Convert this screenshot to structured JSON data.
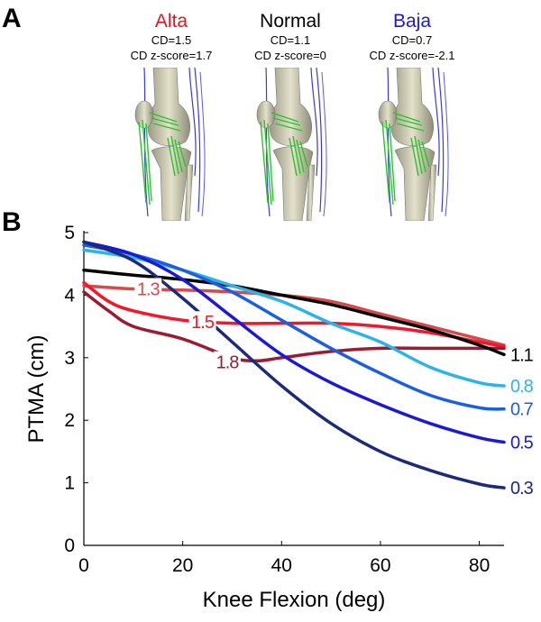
{
  "panel_a": {
    "letter": "A",
    "conditions": [
      {
        "name": "Alta",
        "color": "#e8141d",
        "cd": "CD=1.5",
        "z": "CD z-score=1.7"
      },
      {
        "name": "Normal",
        "color": "#000000",
        "cd": "CD=1.1",
        "z": "CD z-score=0"
      },
      {
        "name": "Baja",
        "color": "#1a1ad6",
        "cd": "CD=0.7",
        "z": "CD z-score=-2.1"
      }
    ]
  },
  "panel_b": {
    "letter": "B"
  },
  "chart_data": {
    "type": "line",
    "title": "",
    "xlabel": "Knee Flexion (deg)",
    "ylabel": "PTMA (cm)",
    "xlim": [
      0,
      85
    ],
    "ylim": [
      0,
      5
    ],
    "xticks": [
      0,
      20,
      40,
      60,
      80
    ],
    "yticks": [
      0,
      1,
      2,
      3,
      4,
      5
    ],
    "grid": false,
    "series": [
      {
        "name": "1.3",
        "color": "#d64a4a",
        "label_at": [
          13,
          4.1
        ],
        "x": [
          0,
          10,
          20,
          30,
          40,
          50,
          60,
          70,
          80,
          85
        ],
        "y": [
          4.15,
          4.1,
          4.08,
          4.05,
          4.0,
          3.9,
          3.7,
          3.5,
          3.3,
          3.2
        ]
      },
      {
        "name": "1.5",
        "color": "#f2182a",
        "label_at": [
          24,
          3.57
        ],
        "x": [
          0,
          5,
          10,
          20,
          30,
          40,
          50,
          60,
          70,
          80,
          85
        ],
        "y": [
          4.2,
          3.9,
          3.75,
          3.6,
          3.55,
          3.55,
          3.55,
          3.5,
          3.4,
          3.25,
          3.18
        ]
      },
      {
        "name": "1.8",
        "color": "#9b1b30",
        "label_at": [
          29,
          2.93
        ],
        "x": [
          0,
          5,
          10,
          20,
          30,
          35,
          40,
          50,
          60,
          70,
          80,
          85
        ],
        "y": [
          4.05,
          3.75,
          3.5,
          3.3,
          3.0,
          2.95,
          3.0,
          3.1,
          3.15,
          3.15,
          3.15,
          3.15
        ],
        "values_hint": "bottom curve labeled 1.8"
      },
      {
        "name": "1.1",
        "color": "#000000",
        "label_at": [
          87,
          3.05
        ],
        "x": [
          0,
          10,
          20,
          30,
          40,
          50,
          60,
          70,
          80,
          85
        ],
        "y": [
          4.4,
          4.32,
          4.25,
          4.15,
          4.0,
          3.85,
          3.65,
          3.45,
          3.2,
          3.05
        ]
      },
      {
        "name": "0.8",
        "color": "#2cb3e8",
        "label_at": [
          87,
          2.55
        ],
        "x": [
          0,
          10,
          20,
          30,
          40,
          50,
          60,
          70,
          80,
          85
        ],
        "y": [
          4.72,
          4.6,
          4.4,
          4.15,
          3.9,
          3.55,
          3.25,
          2.85,
          2.6,
          2.55
        ]
      },
      {
        "name": "0.7",
        "color": "#1a5fe0",
        "label_at": [
          87,
          2.18
        ],
        "x": [
          0,
          10,
          20,
          30,
          40,
          50,
          60,
          70,
          80,
          85
        ],
        "y": [
          4.8,
          4.65,
          4.4,
          4.05,
          3.6,
          3.15,
          2.75,
          2.4,
          2.2,
          2.18
        ]
      },
      {
        "name": "0.5",
        "color": "#1a1ad6",
        "label_at": [
          87,
          1.65
        ],
        "x": [
          0,
          10,
          20,
          30,
          40,
          50,
          60,
          70,
          80,
          85
        ],
        "y": [
          4.85,
          4.65,
          4.25,
          3.65,
          3.05,
          2.6,
          2.25,
          1.95,
          1.72,
          1.65
        ]
      },
      {
        "name": "0.3",
        "color": "#1b2a7a",
        "label_at": [
          87,
          0.92
        ],
        "x": [
          0,
          10,
          20,
          30,
          40,
          50,
          60,
          70,
          80,
          85
        ],
        "y": [
          4.85,
          4.55,
          3.95,
          3.25,
          2.55,
          1.95,
          1.5,
          1.2,
          0.98,
          0.92
        ]
      }
    ]
  }
}
